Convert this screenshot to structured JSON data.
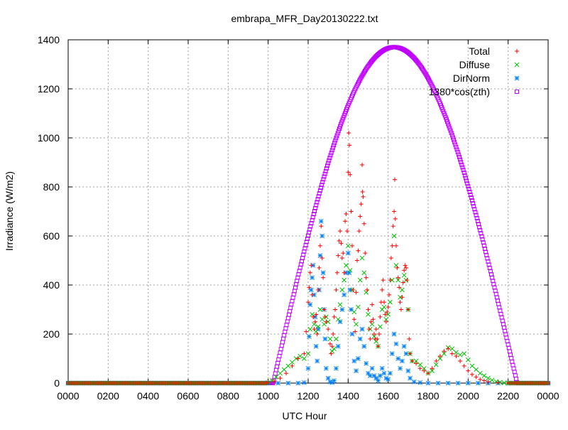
{
  "chart_data": {
    "type": "scatter",
    "title": "embrapa_MFR_Day20130222.txt",
    "xlabel": "UTC Hour",
    "ylabel": "Irradiance (W/m2)",
    "xlim": [
      0,
      24
    ],
    "ylim": [
      0,
      1400
    ],
    "x_ticks": [
      0,
      2,
      4,
      6,
      8,
      10,
      12,
      14,
      16,
      18,
      20,
      22,
      24
    ],
    "x_tick_labels": [
      "0000",
      "0200",
      "0400",
      "0600",
      "0800",
      "1000",
      "1200",
      "1400",
      "1600",
      "1800",
      "2000",
      "2200",
      "0000"
    ],
    "y_ticks": [
      0,
      200,
      400,
      600,
      800,
      1000,
      1200,
      1400
    ],
    "y_tick_labels": [
      "0",
      "200",
      "400",
      "600",
      "800",
      "1000",
      "1200",
      "1400"
    ],
    "grid": true,
    "legend_position": "top-right",
    "series": [
      {
        "name": "Total",
        "color": "#ff0000",
        "marker": "plus",
        "points": [
          [
            10.0,
            2
          ],
          [
            10.3,
            8
          ],
          [
            10.6,
            20
          ],
          [
            10.9,
            40
          ],
          [
            11.2,
            70
          ],
          [
            11.5,
            100
          ],
          [
            11.8,
            120
          ],
          [
            11.9,
            210
          ],
          [
            12.0,
            330
          ],
          [
            12.05,
            390
          ],
          [
            12.1,
            450
          ],
          [
            12.15,
            480
          ],
          [
            12.2,
            360
          ],
          [
            12.25,
            270
          ],
          [
            12.3,
            220
          ],
          [
            12.35,
            250
          ],
          [
            12.4,
            280
          ],
          [
            12.45,
            200
          ],
          [
            12.5,
            380
          ],
          [
            12.55,
            470
          ],
          [
            12.6,
            560
          ],
          [
            12.65,
            640
          ],
          [
            12.7,
            510
          ],
          [
            12.75,
            430
          ],
          [
            12.8,
            300
          ],
          [
            12.85,
            270
          ],
          [
            12.9,
            250
          ],
          [
            13.0,
            220
          ],
          [
            13.1,
            160
          ],
          [
            13.15,
            120
          ],
          [
            13.2,
            150
          ],
          [
            13.25,
            200
          ],
          [
            13.3,
            270
          ],
          [
            13.35,
            300
          ],
          [
            13.4,
            380
          ],
          [
            13.45,
            450
          ],
          [
            13.5,
            520
          ],
          [
            13.55,
            580
          ],
          [
            13.6,
            620
          ],
          [
            13.65,
            570
          ],
          [
            13.7,
            510
          ],
          [
            13.75,
            530
          ],
          [
            13.8,
            450
          ],
          [
            13.85,
            660
          ],
          [
            13.9,
            690
          ],
          [
            13.95,
            620
          ],
          [
            14.0,
            860
          ],
          [
            14.03,
            1020
          ],
          [
            14.06,
            970
          ],
          [
            14.1,
            850
          ],
          [
            14.15,
            700
          ],
          [
            14.2,
            560
          ],
          [
            14.25,
            380
          ],
          [
            14.3,
            260
          ],
          [
            14.35,
            210
          ],
          [
            14.4,
            370
          ],
          [
            14.45,
            500
          ],
          [
            14.5,
            540
          ],
          [
            14.55,
            620
          ],
          [
            14.6,
            680
          ],
          [
            14.65,
            730
          ],
          [
            14.7,
            890
          ],
          [
            14.72,
            780
          ],
          [
            14.75,
            760
          ],
          [
            14.8,
            650
          ],
          [
            14.85,
            530
          ],
          [
            14.9,
            430
          ],
          [
            14.95,
            380
          ],
          [
            15.0,
            300
          ],
          [
            15.05,
            220
          ],
          [
            15.1,
            180
          ],
          [
            15.15,
            250
          ],
          [
            15.2,
            320
          ],
          [
            15.25,
            260
          ],
          [
            15.3,
            200
          ],
          [
            15.35,
            180
          ],
          [
            15.4,
            220
          ],
          [
            15.45,
            180
          ],
          [
            15.5,
            150
          ],
          [
            15.55,
            200
          ],
          [
            15.6,
            270
          ],
          [
            15.65,
            330
          ],
          [
            15.7,
            380
          ],
          [
            15.75,
            420
          ],
          [
            15.8,
            330
          ],
          [
            15.85,
            280
          ],
          [
            15.9,
            250
          ],
          [
            15.95,
            290
          ],
          [
            16.0,
            310
          ],
          [
            16.05,
            360
          ],
          [
            16.1,
            420
          ],
          [
            16.15,
            510
          ],
          [
            16.2,
            560
          ],
          [
            16.25,
            640
          ],
          [
            16.3,
            700
          ],
          [
            16.33,
            830
          ],
          [
            16.36,
            670
          ],
          [
            16.4,
            560
          ],
          [
            16.45,
            470
          ],
          [
            16.5,
            430
          ],
          [
            16.55,
            390
          ],
          [
            16.6,
            330
          ],
          [
            16.65,
            300
          ],
          [
            16.7,
            350
          ],
          [
            16.75,
            410
          ],
          [
            16.8,
            460
          ],
          [
            16.85,
            480
          ],
          [
            16.9,
            470
          ],
          [
            16.95,
            420
          ],
          [
            17.0,
            300
          ],
          [
            17.05,
            180
          ],
          [
            17.1,
            120
          ],
          [
            17.2,
            90
          ],
          [
            17.4,
            80
          ],
          [
            17.6,
            60
          ],
          [
            17.8,
            50
          ],
          [
            18.0,
            40
          ],
          [
            18.2,
            60
          ],
          [
            18.4,
            90
          ],
          [
            18.6,
            110
          ],
          [
            18.8,
            130
          ],
          [
            19.0,
            140
          ],
          [
            19.2,
            120
          ],
          [
            19.4,
            110
          ],
          [
            19.6,
            90
          ],
          [
            19.8,
            70
          ],
          [
            20.0,
            50
          ],
          [
            20.2,
            35
          ],
          [
            20.4,
            25
          ],
          [
            20.6,
            15
          ],
          [
            20.8,
            10
          ],
          [
            21.0,
            5
          ],
          [
            21.5,
            2
          ]
        ]
      },
      {
        "name": "Diffuse",
        "color": "#00c000",
        "marker": "cross",
        "points": [
          [
            10.0,
            2
          ],
          [
            10.2,
            10
          ],
          [
            10.4,
            25
          ],
          [
            10.6,
            40
          ],
          [
            10.8,
            55
          ],
          [
            11.0,
            70
          ],
          [
            11.2,
            85
          ],
          [
            11.4,
            100
          ],
          [
            11.6,
            110
          ],
          [
            11.8,
            100
          ],
          [
            12.0,
            120
          ],
          [
            12.1,
            220
          ],
          [
            12.2,
            280
          ],
          [
            12.3,
            240
          ],
          [
            12.4,
            210
          ],
          [
            12.5,
            230
          ],
          [
            12.6,
            300
          ],
          [
            12.7,
            260
          ],
          [
            12.8,
            240
          ],
          [
            12.9,
            270
          ],
          [
            13.0,
            250
          ],
          [
            13.1,
            180
          ],
          [
            13.2,
            130
          ],
          [
            13.3,
            140
          ],
          [
            13.4,
            180
          ],
          [
            13.5,
            260
          ],
          [
            13.6,
            320
          ],
          [
            13.7,
            380
          ],
          [
            13.8,
            420
          ],
          [
            13.9,
            480
          ],
          [
            14.0,
            560
          ],
          [
            14.1,
            460
          ],
          [
            14.2,
            380
          ],
          [
            14.3,
            290
          ],
          [
            14.4,
            240
          ],
          [
            14.5,
            310
          ],
          [
            14.6,
            420
          ],
          [
            14.7,
            510
          ],
          [
            14.8,
            450
          ],
          [
            14.9,
            370
          ],
          [
            15.0,
            280
          ],
          [
            15.1,
            220
          ],
          [
            15.2,
            240
          ],
          [
            15.3,
            190
          ],
          [
            15.4,
            170
          ],
          [
            15.5,
            150
          ],
          [
            15.6,
            230
          ],
          [
            15.7,
            300
          ],
          [
            15.8,
            310
          ],
          [
            15.9,
            260
          ],
          [
            16.0,
            280
          ],
          [
            16.1,
            330
          ],
          [
            16.2,
            420
          ],
          [
            16.3,
            600
          ],
          [
            16.4,
            480
          ],
          [
            16.5,
            420
          ],
          [
            16.6,
            350
          ],
          [
            16.7,
            380
          ],
          [
            16.8,
            440
          ],
          [
            16.9,
            420
          ],
          [
            17.0,
            300
          ],
          [
            17.1,
            120
          ],
          [
            17.2,
            90
          ],
          [
            17.4,
            90
          ],
          [
            17.6,
            75
          ],
          [
            17.8,
            60
          ],
          [
            18.0,
            40
          ],
          [
            18.2,
            50
          ],
          [
            18.4,
            75
          ],
          [
            18.6,
            100
          ],
          [
            18.8,
            120
          ],
          [
            19.0,
            145
          ],
          [
            19.2,
            140
          ],
          [
            19.4,
            125
          ],
          [
            19.6,
            115
          ],
          [
            19.8,
            120
          ],
          [
            20.0,
            95
          ],
          [
            20.2,
            70
          ],
          [
            20.4,
            55
          ],
          [
            20.6,
            40
          ],
          [
            20.8,
            30
          ],
          [
            21.0,
            20
          ],
          [
            21.2,
            12
          ],
          [
            21.4,
            6
          ],
          [
            21.6,
            3
          ],
          [
            21.8,
            1
          ],
          [
            22.0,
            0
          ]
        ]
      },
      {
        "name": "DirNorm",
        "color": "#0080ff",
        "marker": "star",
        "points": [
          [
            10.0,
            0
          ],
          [
            10.5,
            0
          ],
          [
            11.0,
            0
          ],
          [
            11.5,
            0
          ],
          [
            11.8,
            2
          ],
          [
            12.0,
            60
          ],
          [
            12.05,
            190
          ],
          [
            12.1,
            320
          ],
          [
            12.15,
            380
          ],
          [
            12.2,
            430
          ],
          [
            12.25,
            480
          ],
          [
            12.3,
            360
          ],
          [
            12.35,
            270
          ],
          [
            12.4,
            150
          ],
          [
            12.45,
            90
          ],
          [
            12.5,
            220
          ],
          [
            12.55,
            380
          ],
          [
            12.6,
            520
          ],
          [
            12.65,
            660
          ],
          [
            12.7,
            600
          ],
          [
            12.75,
            450
          ],
          [
            12.8,
            300
          ],
          [
            12.85,
            180
          ],
          [
            12.9,
            60
          ],
          [
            13.0,
            20
          ],
          [
            13.1,
            5
          ],
          [
            13.2,
            2
          ],
          [
            13.3,
            10
          ],
          [
            13.4,
            60
          ],
          [
            13.5,
            150
          ],
          [
            13.6,
            250
          ],
          [
            13.7,
            300
          ],
          [
            13.8,
            360
          ],
          [
            13.9,
            450
          ],
          [
            14.0,
            530
          ],
          [
            14.05,
            450
          ],
          [
            14.1,
            380
          ],
          [
            14.15,
            300
          ],
          [
            14.2,
            200
          ],
          [
            14.3,
            90
          ],
          [
            14.4,
            50
          ],
          [
            14.5,
            100
          ],
          [
            14.6,
            180
          ],
          [
            14.7,
            220
          ],
          [
            14.8,
            150
          ],
          [
            14.9,
            80
          ],
          [
            15.0,
            40
          ],
          [
            15.1,
            30
          ],
          [
            15.2,
            60
          ],
          [
            15.3,
            30
          ],
          [
            15.4,
            20
          ],
          [
            15.5,
            10
          ],
          [
            15.6,
            30
          ],
          [
            15.7,
            60
          ],
          [
            15.8,
            40
          ],
          [
            15.9,
            20
          ],
          [
            16.0,
            15
          ],
          [
            16.1,
            40
          ],
          [
            16.2,
            120
          ],
          [
            16.3,
            200
          ],
          [
            16.4,
            160
          ],
          [
            16.5,
            100
          ],
          [
            16.6,
            60
          ],
          [
            16.7,
            90
          ],
          [
            16.8,
            150
          ],
          [
            16.9,
            120
          ],
          [
            17.0,
            50
          ],
          [
            17.1,
            20
          ],
          [
            17.3,
            5
          ],
          [
            17.6,
            2
          ],
          [
            18.0,
            0
          ],
          [
            18.5,
            0
          ],
          [
            19.0,
            0
          ],
          [
            19.5,
            0
          ],
          [
            20.0,
            0
          ],
          [
            20.5,
            0
          ],
          [
            21.0,
            0
          ],
          [
            21.5,
            0
          ],
          [
            22.0,
            0
          ]
        ]
      },
      {
        "name": "1380*cos(zth)",
        "color": "#c000ff",
        "marker": "square",
        "points": []
      }
    ]
  }
}
